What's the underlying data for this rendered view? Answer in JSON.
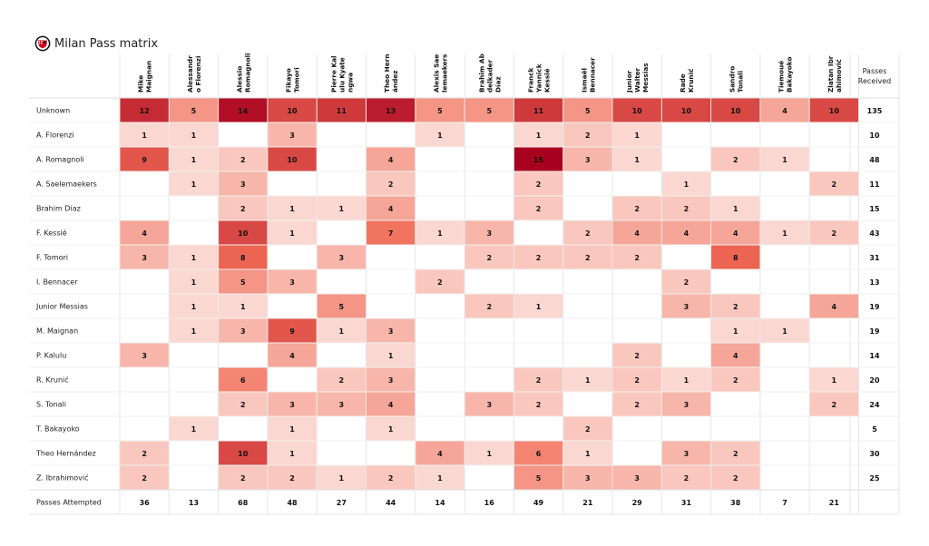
{
  "title": "Milan Pass matrix",
  "crest": {
    "icon": "club-crest-icon",
    "colors": [
      "#d4001f",
      "#111111",
      "#ffffff"
    ]
  },
  "chart_data": {
    "type": "heatmap",
    "title": "Milan Pass matrix",
    "colorscale": {
      "low": "#fde8e4",
      "high": "#a8001f"
    },
    "columns": [
      "Mike\nMaignan",
      "Alessandr\no Florenzi",
      "Alessio\nRomagnoli",
      "Fikayo\nTomori",
      "Pierre Kal\nulu Kyate\nngwa",
      "Theo Hern\nández",
      "Alexis Sae\nlemaekers",
      "Brahim Ab\ndelkader\nDíaz",
      "Franck\nYannick\nKessié",
      "Ismaël\nBennacer",
      "Junior\nWalter\nMessias",
      "Rade\nKrunić",
      "Sandro\nTonali",
      "Tiemoué\nBakayoko",
      "Zlatan Ibr\nahimović"
    ],
    "rows": [
      "Unknown",
      "A. Florenzi",
      "A. Romagnoli",
      "A. Saelemaekers",
      "Brahim Diaz",
      "F. Kessié",
      "F. Tomori",
      "I. Bennacer",
      "Junior Messias",
      "M. Maignan",
      "P. Kalulu",
      "R. Krunić",
      "S. Tonali",
      "T. Bakayoko",
      "Theo Hernández",
      "Z. Ibrahimović"
    ],
    "values": [
      [
        12,
        5,
        14,
        10,
        11,
        13,
        5,
        5,
        11,
        5,
        10,
        10,
        10,
        4,
        10
      ],
      [
        1,
        1,
        null,
        3,
        null,
        null,
        1,
        null,
        1,
        2,
        1,
        null,
        null,
        null,
        null
      ],
      [
        9,
        1,
        2,
        10,
        null,
        4,
        null,
        null,
        15,
        3,
        1,
        null,
        2,
        1,
        null
      ],
      [
        null,
        1,
        3,
        null,
        null,
        2,
        null,
        null,
        2,
        null,
        null,
        1,
        null,
        null,
        2
      ],
      [
        null,
        null,
        2,
        1,
        1,
        4,
        null,
        null,
        2,
        null,
        2,
        2,
        1,
        null,
        null
      ],
      [
        4,
        null,
        10,
        1,
        null,
        7,
        1,
        3,
        null,
        2,
        4,
        4,
        4,
        1,
        2
      ],
      [
        3,
        1,
        8,
        null,
        3,
        null,
        null,
        2,
        2,
        2,
        2,
        null,
        8,
        null,
        null
      ],
      [
        null,
        1,
        5,
        3,
        null,
        null,
        2,
        null,
        null,
        null,
        null,
        2,
        null,
        null,
        null
      ],
      [
        null,
        1,
        1,
        null,
        5,
        null,
        null,
        2,
        1,
        null,
        null,
        3,
        2,
        null,
        4
      ],
      [
        null,
        1,
        3,
        9,
        1,
        3,
        null,
        null,
        null,
        null,
        null,
        null,
        1,
        1,
        null
      ],
      [
        3,
        null,
        null,
        4,
        null,
        1,
        null,
        null,
        null,
        null,
        2,
        null,
        4,
        null,
        null
      ],
      [
        null,
        null,
        6,
        null,
        2,
        3,
        null,
        null,
        2,
        1,
        2,
        1,
        2,
        null,
        1
      ],
      [
        null,
        null,
        2,
        3,
        3,
        4,
        null,
        3,
        2,
        null,
        2,
        3,
        null,
        null,
        2
      ],
      [
        null,
        1,
        null,
        1,
        null,
        1,
        null,
        null,
        null,
        2,
        null,
        null,
        null,
        null,
        null
      ],
      [
        2,
        null,
        10,
        1,
        null,
        null,
        4,
        1,
        6,
        1,
        null,
        3,
        2,
        null,
        null
      ],
      [
        2,
        null,
        2,
        2,
        1,
        2,
        1,
        null,
        5,
        3,
        3,
        2,
        2,
        null,
        null
      ]
    ],
    "row_totals_label": "Passes\nReceived",
    "row_totals": [
      135,
      10,
      48,
      11,
      15,
      43,
      31,
      13,
      19,
      19,
      14,
      20,
      24,
      5,
      30,
      25
    ],
    "col_totals_label": "Passes Attempted",
    "col_totals": [
      36,
      13,
      68,
      48,
      27,
      44,
      14,
      16,
      49,
      21,
      29,
      31,
      38,
      7,
      21
    ]
  }
}
